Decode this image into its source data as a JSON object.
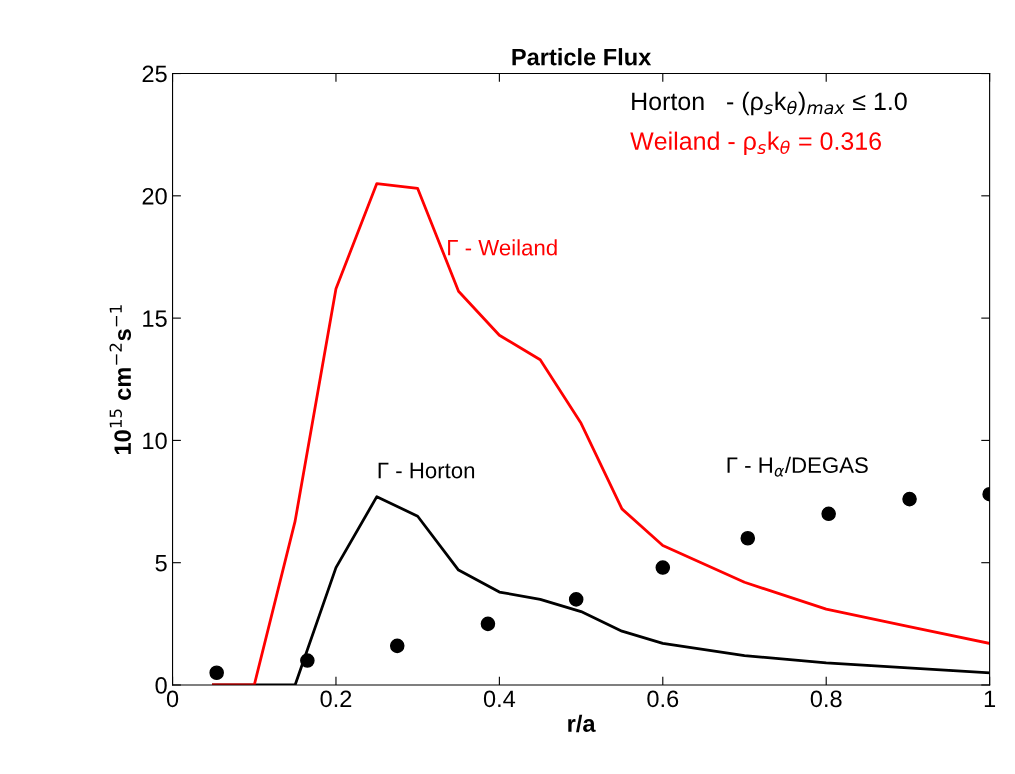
{
  "chart_data": {
    "type": "line",
    "title": "Particle Flux",
    "xlabel": "r/a",
    "ylabel": "10$^{15}$ cm$^{−2}$s$^{−1}$",
    "xlim": [
      0,
      1
    ],
    "xticks": [
      0,
      0.2,
      0.4,
      0.6,
      0.8,
      1
    ],
    "ylim": [
      0,
      25
    ],
    "yticks": [
      0,
      5,
      10,
      15,
      20,
      25
    ],
    "grid": false,
    "legend": false,
    "series": [
      {
        "name": "Γ - Horton",
        "type": "line",
        "color": "#000000",
        "marker": "none",
        "line_style": "solid",
        "x": [
          0.05,
          0.1,
          0.15,
          0.2,
          0.25,
          0.3,
          0.35,
          0.4,
          0.45,
          0.5,
          0.55,
          0.6,
          0.7,
          0.8,
          0.9,
          1.0
        ],
        "values": [
          0,
          0,
          0,
          4.8,
          7.7,
          6.9,
          4.7,
          3.8,
          3.5,
          3.0,
          2.2,
          1.7,
          1.2,
          0.9,
          0.7,
          0.5
        ]
      },
      {
        "name": "Γ - Weiland",
        "type": "line",
        "color": "#ff0000",
        "marker": "none",
        "line_style": "solid",
        "x": [
          0.05,
          0.1,
          0.15,
          0.2,
          0.25,
          0.3,
          0.35,
          0.4,
          0.45,
          0.5,
          0.55,
          0.6,
          0.7,
          0.8,
          0.9,
          1.0
        ],
        "values": [
          0,
          0,
          6.7,
          16.2,
          20.5,
          20.3,
          16.1,
          14.3,
          13.3,
          10.7,
          7.2,
          5.7,
          4.2,
          3.1,
          2.4,
          1.7
        ]
      },
      {
        "name": "Γ - H$_{α}$/DEGAS",
        "type": "scatter",
        "color": "#000000",
        "marker": "circle",
        "x": [
          0.054,
          0.165,
          0.275,
          0.386,
          0.494,
          0.6,
          0.704,
          0.803,
          0.902,
          1.0
        ],
        "values": [
          0.5,
          1.0,
          1.6,
          2.5,
          3.5,
          4.8,
          6.0,
          7.0,
          7.6,
          7.8
        ]
      }
    ],
    "annotations": [
      "Horton   - (ρ$_{s}$k$_{θ}$)$_{max}$ ≤ 1.0",
      "Weiland - ρ$_{s}$k$_{θ}$ = 0.316"
    ]
  }
}
